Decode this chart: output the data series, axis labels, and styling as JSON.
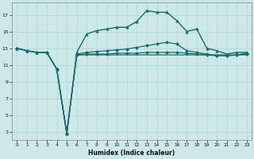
{
  "xlabel": "Humidex (Indice chaleur)",
  "bg_color": "#cde8e8",
  "line_color": "#1a6b6b",
  "grid_color": "#b0d8d8",
  "xlim": [
    -0.5,
    23.5
  ],
  "ylim": [
    2,
    18.5
  ],
  "xticks": [
    0,
    1,
    2,
    3,
    4,
    5,
    6,
    7,
    8,
    9,
    10,
    11,
    12,
    13,
    14,
    15,
    16,
    17,
    18,
    19,
    20,
    21,
    22,
    23
  ],
  "yticks": [
    3,
    5,
    7,
    9,
    11,
    13,
    15,
    17
  ],
  "lines": [
    {
      "x": [
        0,
        1,
        2,
        3,
        4,
        5,
        6,
        7,
        8,
        9,
        10,
        11,
        12,
        13,
        14,
        15,
        16,
        17,
        18,
        19,
        20,
        21,
        22,
        23
      ],
      "y": [
        13,
        12.7,
        12.5,
        12.5,
        10.5,
        2.8,
        12.5,
        14.7,
        15.1,
        15.3,
        15.5,
        15.5,
        16.2,
        17.5,
        17.3,
        17.3,
        16.3,
        15.0,
        15.3,
        13.0,
        12.7,
        12.3,
        12.5,
        12.5
      ],
      "marker": "^",
      "markersize": 2.5,
      "linewidth": 1.0
    },
    {
      "x": [
        0,
        1,
        2,
        3,
        4,
        5,
        6,
        7,
        8,
        9,
        10,
        11,
        12,
        13,
        14,
        15,
        16,
        17,
        18,
        19,
        20,
        21,
        22,
        23
      ],
      "y": [
        13,
        12.7,
        12.5,
        12.5,
        10.5,
        2.8,
        12.3,
        12.5,
        12.6,
        12.7,
        12.8,
        12.9,
        13.1,
        13.3,
        13.5,
        13.7,
        13.5,
        12.7,
        12.5,
        12.3,
        12.1,
        12.1,
        12.2,
        12.4
      ],
      "marker": "D",
      "markersize": 2.0,
      "linewidth": 0.9
    },
    {
      "x": [
        0,
        1,
        2,
        3,
        4,
        5,
        6,
        7,
        8,
        9,
        10,
        11,
        12,
        13,
        14,
        15,
        16,
        17,
        18,
        19,
        20,
        21,
        22,
        23
      ],
      "y": [
        13,
        12.7,
        12.5,
        12.5,
        10.5,
        2.8,
        12.2,
        12.2,
        12.2,
        12.2,
        12.2,
        12.2,
        12.2,
        12.2,
        12.2,
        12.2,
        12.2,
        12.2,
        12.2,
        12.2,
        12.2,
        12.2,
        12.2,
        12.2
      ],
      "marker": null,
      "markersize": 0,
      "linewidth": 0.9
    },
    {
      "x": [
        0,
        1,
        2,
        3,
        4,
        5,
        6,
        7,
        8,
        9,
        10,
        11,
        12,
        13,
        14,
        15,
        16,
        17,
        18,
        19,
        20,
        21,
        22,
        23
      ],
      "y": [
        13,
        12.7,
        12.5,
        12.5,
        10.5,
        2.8,
        12.2,
        12.3,
        12.3,
        12.3,
        12.4,
        12.4,
        12.4,
        12.5,
        12.5,
        12.5,
        12.5,
        12.4,
        12.3,
        12.2,
        12.1,
        12.1,
        12.2,
        12.3
      ],
      "marker": "D",
      "markersize": 2.0,
      "linewidth": 0.9
    }
  ]
}
